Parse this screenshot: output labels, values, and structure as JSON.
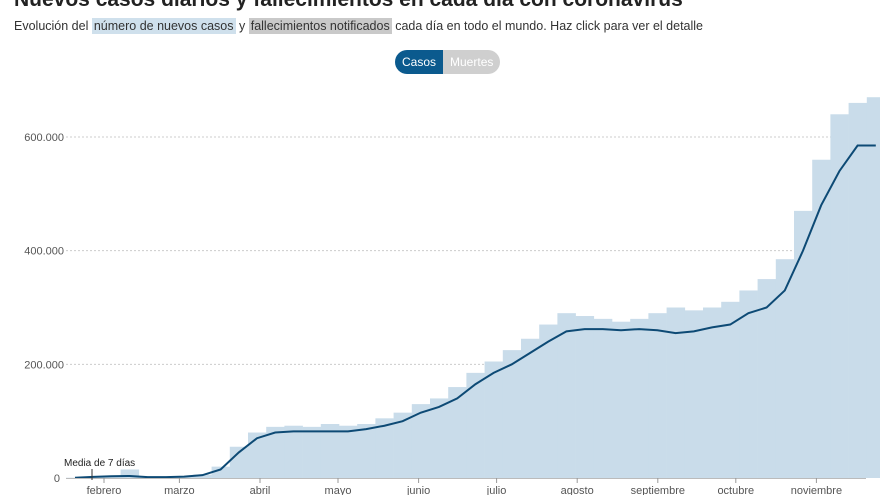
{
  "header": {
    "title": "Nuevos casos diarios y fallecimientos en cada día con coronavirus",
    "subtitle_pre": "Evolución del",
    "subtitle_cases": "número de nuevos casos",
    "subtitle_mid": "y",
    "subtitle_deaths": "fallecimientos notificados",
    "subtitle_post": "cada día en todo el mundo. Haz click para ver el detalle"
  },
  "toggle": {
    "casos": "Casos",
    "muertes": "Muertes",
    "selected": "Casos"
  },
  "colors": {
    "bars": "#c9dcea",
    "line": "#0d4a75",
    "toggle_active": "#0b5a8e",
    "toggle_inactive": "#cfcfcf"
  },
  "chart_data": {
    "type": "bar",
    "annotation": "Media de 7 días",
    "ylim": [
      0,
      700000
    ],
    "yticks": [
      0,
      200000,
      400000,
      600000
    ],
    "ytick_labels": [
      "0",
      "200.000",
      "400.000",
      "600.000"
    ],
    "xtick_labels": [
      "febrero",
      "marzo",
      "abril",
      "mayo",
      "junio",
      "julio",
      "agosto",
      "septiembre",
      "octubre",
      "noviembre"
    ],
    "grid": true,
    "weeks": [
      "2020-01-22",
      "2020-01-29",
      "2020-02-05",
      "2020-02-12",
      "2020-02-19",
      "2020-02-26",
      "2020-03-04",
      "2020-03-11",
      "2020-03-18",
      "2020-03-25",
      "2020-04-01",
      "2020-04-08",
      "2020-04-15",
      "2020-04-22",
      "2020-04-29",
      "2020-05-06",
      "2020-05-13",
      "2020-05-20",
      "2020-05-27",
      "2020-06-03",
      "2020-06-10",
      "2020-06-17",
      "2020-06-24",
      "2020-07-01",
      "2020-07-08",
      "2020-07-15",
      "2020-07-22",
      "2020-07-29",
      "2020-08-05",
      "2020-08-12",
      "2020-08-19",
      "2020-08-26",
      "2020-09-02",
      "2020-09-09",
      "2020-09-16",
      "2020-09-23",
      "2020-09-30",
      "2020-10-07",
      "2020-10-14",
      "2020-10-21",
      "2020-10-28",
      "2020-11-04",
      "2020-11-11",
      "2020-11-18",
      "2020-11-25"
    ],
    "series": [
      {
        "name": "casos diarios",
        "values": [
          500,
          2500,
          3500,
          15000,
          1500,
          1800,
          3000,
          6000,
          20000,
          55000,
          80000,
          90000,
          92000,
          90000,
          95000,
          92000,
          95000,
          105000,
          115000,
          130000,
          140000,
          160000,
          185000,
          205000,
          225000,
          245000,
          270000,
          290000,
          285000,
          280000,
          275000,
          280000,
          290000,
          300000,
          295000,
          300000,
          310000,
          330000,
          350000,
          385000,
          470000,
          560000,
          640000,
          660000,
          670000
        ]
      },
      {
        "name": "Media de 7 días",
        "values": [
          500,
          2000,
          3000,
          3500,
          1500,
          1500,
          2500,
          5000,
          15000,
          45000,
          70000,
          80000,
          82000,
          82000,
          82000,
          82000,
          86000,
          92000,
          100000,
          115000,
          125000,
          140000,
          165000,
          185000,
          200000,
          220000,
          240000,
          258000,
          262000,
          262000,
          260000,
          262000,
          260000,
          255000,
          258000,
          265000,
          270000,
          290000,
          300000,
          330000,
          400000,
          480000,
          540000,
          585000,
          585000
        ]
      }
    ]
  }
}
